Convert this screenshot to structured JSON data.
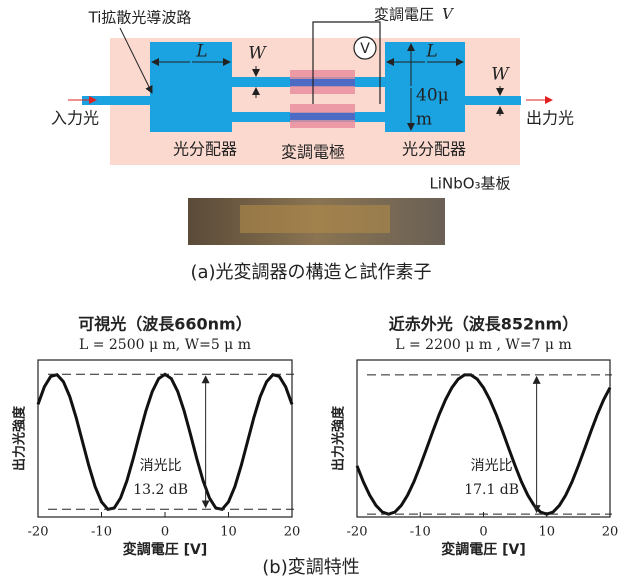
{
  "diagram": {
    "waveguide_label": "Ti拡散光導波路",
    "voltage_label": "変調電圧",
    "voltage_symbol": "V",
    "meter": "V",
    "input": "入力光",
    "output": "出力光",
    "dims": [
      "L",
      "W",
      "L",
      "W"
    ],
    "width_top": "40μ",
    "width_bottom": "m",
    "splitter_left": "光分配器",
    "electrode": "変調電極",
    "splitter_right": "光分配器",
    "substrate": "LiNbO₃基板",
    "caption_a": "(a)光変調器の構造と試作素子",
    "caption_b": "(b)変調特性"
  },
  "chart_data": [
    {
      "type": "line",
      "title": "可視光（波長660nm）",
      "subtitle": "L = 2500 μ m, W=5 μ m",
      "x_label": "変調電圧 [V]",
      "y_label": "出力光強度",
      "annotation": "消光比",
      "annotation_value": "13.2 dB",
      "color": "#111111",
      "xlim": [
        -20,
        20
      ],
      "ylim": [
        0,
        1.1
      ],
      "xticks": [
        -20,
        -10,
        0,
        10,
        20
      ],
      "x": [
        -20,
        -19,
        -18,
        -17,
        -16,
        -15,
        -14,
        -13,
        -12,
        -11,
        -10,
        -9,
        -8,
        -7,
        -6,
        -5,
        -4,
        -3,
        -2,
        -1,
        0,
        1,
        2,
        3,
        4,
        5,
        6,
        7,
        8,
        9,
        10,
        11,
        12,
        13,
        14,
        15,
        16,
        17,
        18,
        19,
        20
      ],
      "series": [
        {
          "values": [
            0.789,
            0.912,
            0.985,
            0.997,
            0.948,
            0.844,
            0.698,
            0.529,
            0.36,
            0.212,
            0.106,
            0.054,
            0.063,
            0.133,
            0.254,
            0.41,
            0.581,
            0.745,
            0.88,
            0.969,
            1.0,
            0.969,
            0.88,
            0.745,
            0.581,
            0.41,
            0.254,
            0.133,
            0.063,
            0.054,
            0.106,
            0.212,
            0.36,
            0.529,
            0.698,
            0.844,
            0.948,
            0.997,
            0.985,
            0.912,
            0.789
          ]
        }
      ]
    },
    {
      "type": "line",
      "title": "近赤外光（波長852nm）",
      "subtitle": "L = 2200 μ m , W=7 μ m",
      "x_label": "変調電圧 [V]",
      "y_label": "出力光強度",
      "annotation": "消光比",
      "annotation_value": "17.1 dB",
      "color": "#111111",
      "xlim": [
        -20,
        20
      ],
      "ylim": [
        0,
        1.1
      ],
      "xticks": [
        -20,
        -10,
        0,
        10,
        20
      ],
      "x": [
        -20,
        -19,
        -18,
        -17,
        -16,
        -15,
        -14,
        -13,
        -12,
        -11,
        -10,
        -9,
        -8,
        -7,
        -6,
        -5,
        -4,
        -3,
        -2,
        -1,
        0,
        1,
        2,
        3,
        4,
        5,
        6,
        7,
        8,
        9,
        10,
        11,
        12,
        13,
        14,
        15,
        16,
        17,
        18,
        19,
        20
      ],
      "series": [
        {
          "values": [
            0.359,
            0.247,
            0.153,
            0.081,
            0.035,
            0.02,
            0.035,
            0.081,
            0.153,
            0.247,
            0.359,
            0.479,
            0.602,
            0.719,
            0.822,
            0.906,
            0.966,
            0.996,
            0.996,
            0.966,
            0.906,
            0.822,
            0.719,
            0.602,
            0.479,
            0.359,
            0.247,
            0.153,
            0.081,
            0.035,
            0.02,
            0.035,
            0.081,
            0.153,
            0.247,
            0.359,
            0.479,
            0.602,
            0.719,
            0.822,
            0.906
          ]
        }
      ]
    }
  ]
}
